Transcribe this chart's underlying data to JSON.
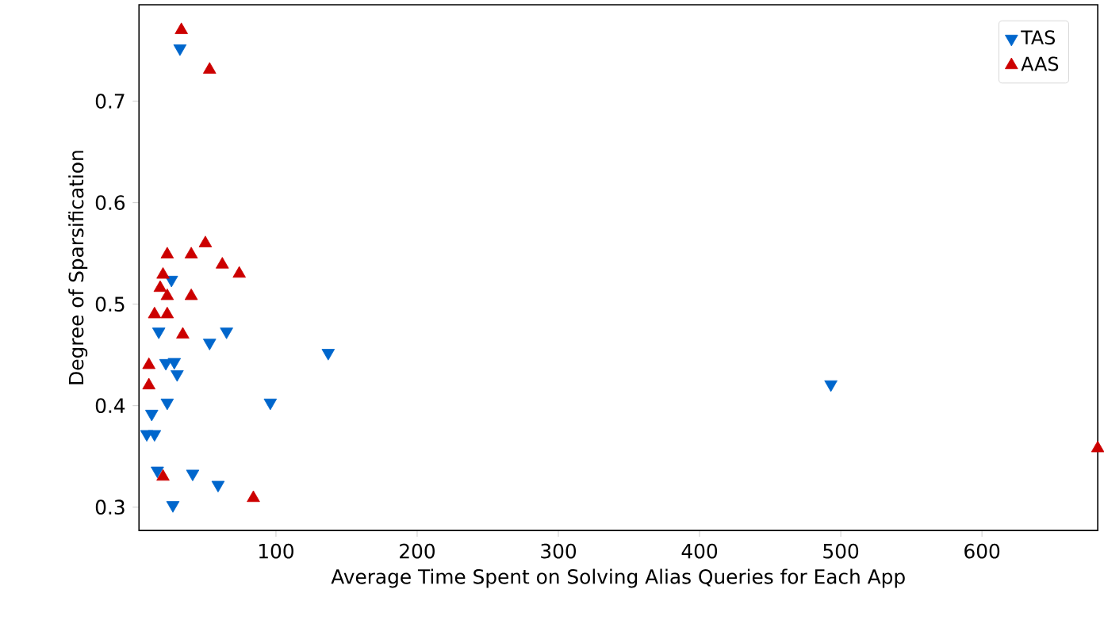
{
  "chart_data": {
    "type": "scatter",
    "xlabel": "Average Time Spent on Solving Alias Queries for Each App",
    "ylabel": "Degree of Sparsification",
    "xlim": [
      3,
      682
    ],
    "ylim": [
      0.277,
      0.795
    ],
    "xticks": [
      100,
      200,
      300,
      400,
      500,
      600
    ],
    "yticks": [
      0.3,
      0.4,
      0.5,
      0.6,
      0.7
    ],
    "legend": "top right",
    "grid": false,
    "series": [
      {
        "name": "TAS",
        "color": "#0066cc",
        "marker": "triangle_down",
        "x": [
          32,
          26,
          17,
          53,
          65,
          137,
          22,
          28,
          30,
          23,
          96,
          12,
          8.5,
          14,
          16,
          41,
          59,
          27,
          493
        ],
        "values": [
          0.752,
          0.524,
          0.473,
          0.462,
          0.473,
          0.452,
          0.442,
          0.443,
          0.431,
          0.403,
          0.403,
          0.392,
          0.372,
          0.372,
          0.336,
          0.333,
          0.322,
          0.302,
          0.421
        ]
      },
      {
        "name": "AAS",
        "color": "#cc0000",
        "marker": "triangle",
        "x": [
          33,
          53,
          50,
          23,
          40,
          62,
          74,
          20,
          18,
          23,
          40,
          14,
          23,
          34,
          10,
          10,
          20,
          84,
          682
        ],
        "values": [
          0.77,
          0.731,
          0.56,
          0.549,
          0.549,
          0.539,
          0.53,
          0.529,
          0.516,
          0.508,
          0.508,
          0.49,
          0.49,
          0.47,
          0.44,
          0.42,
          0.33,
          0.309,
          0.358
        ]
      }
    ]
  }
}
